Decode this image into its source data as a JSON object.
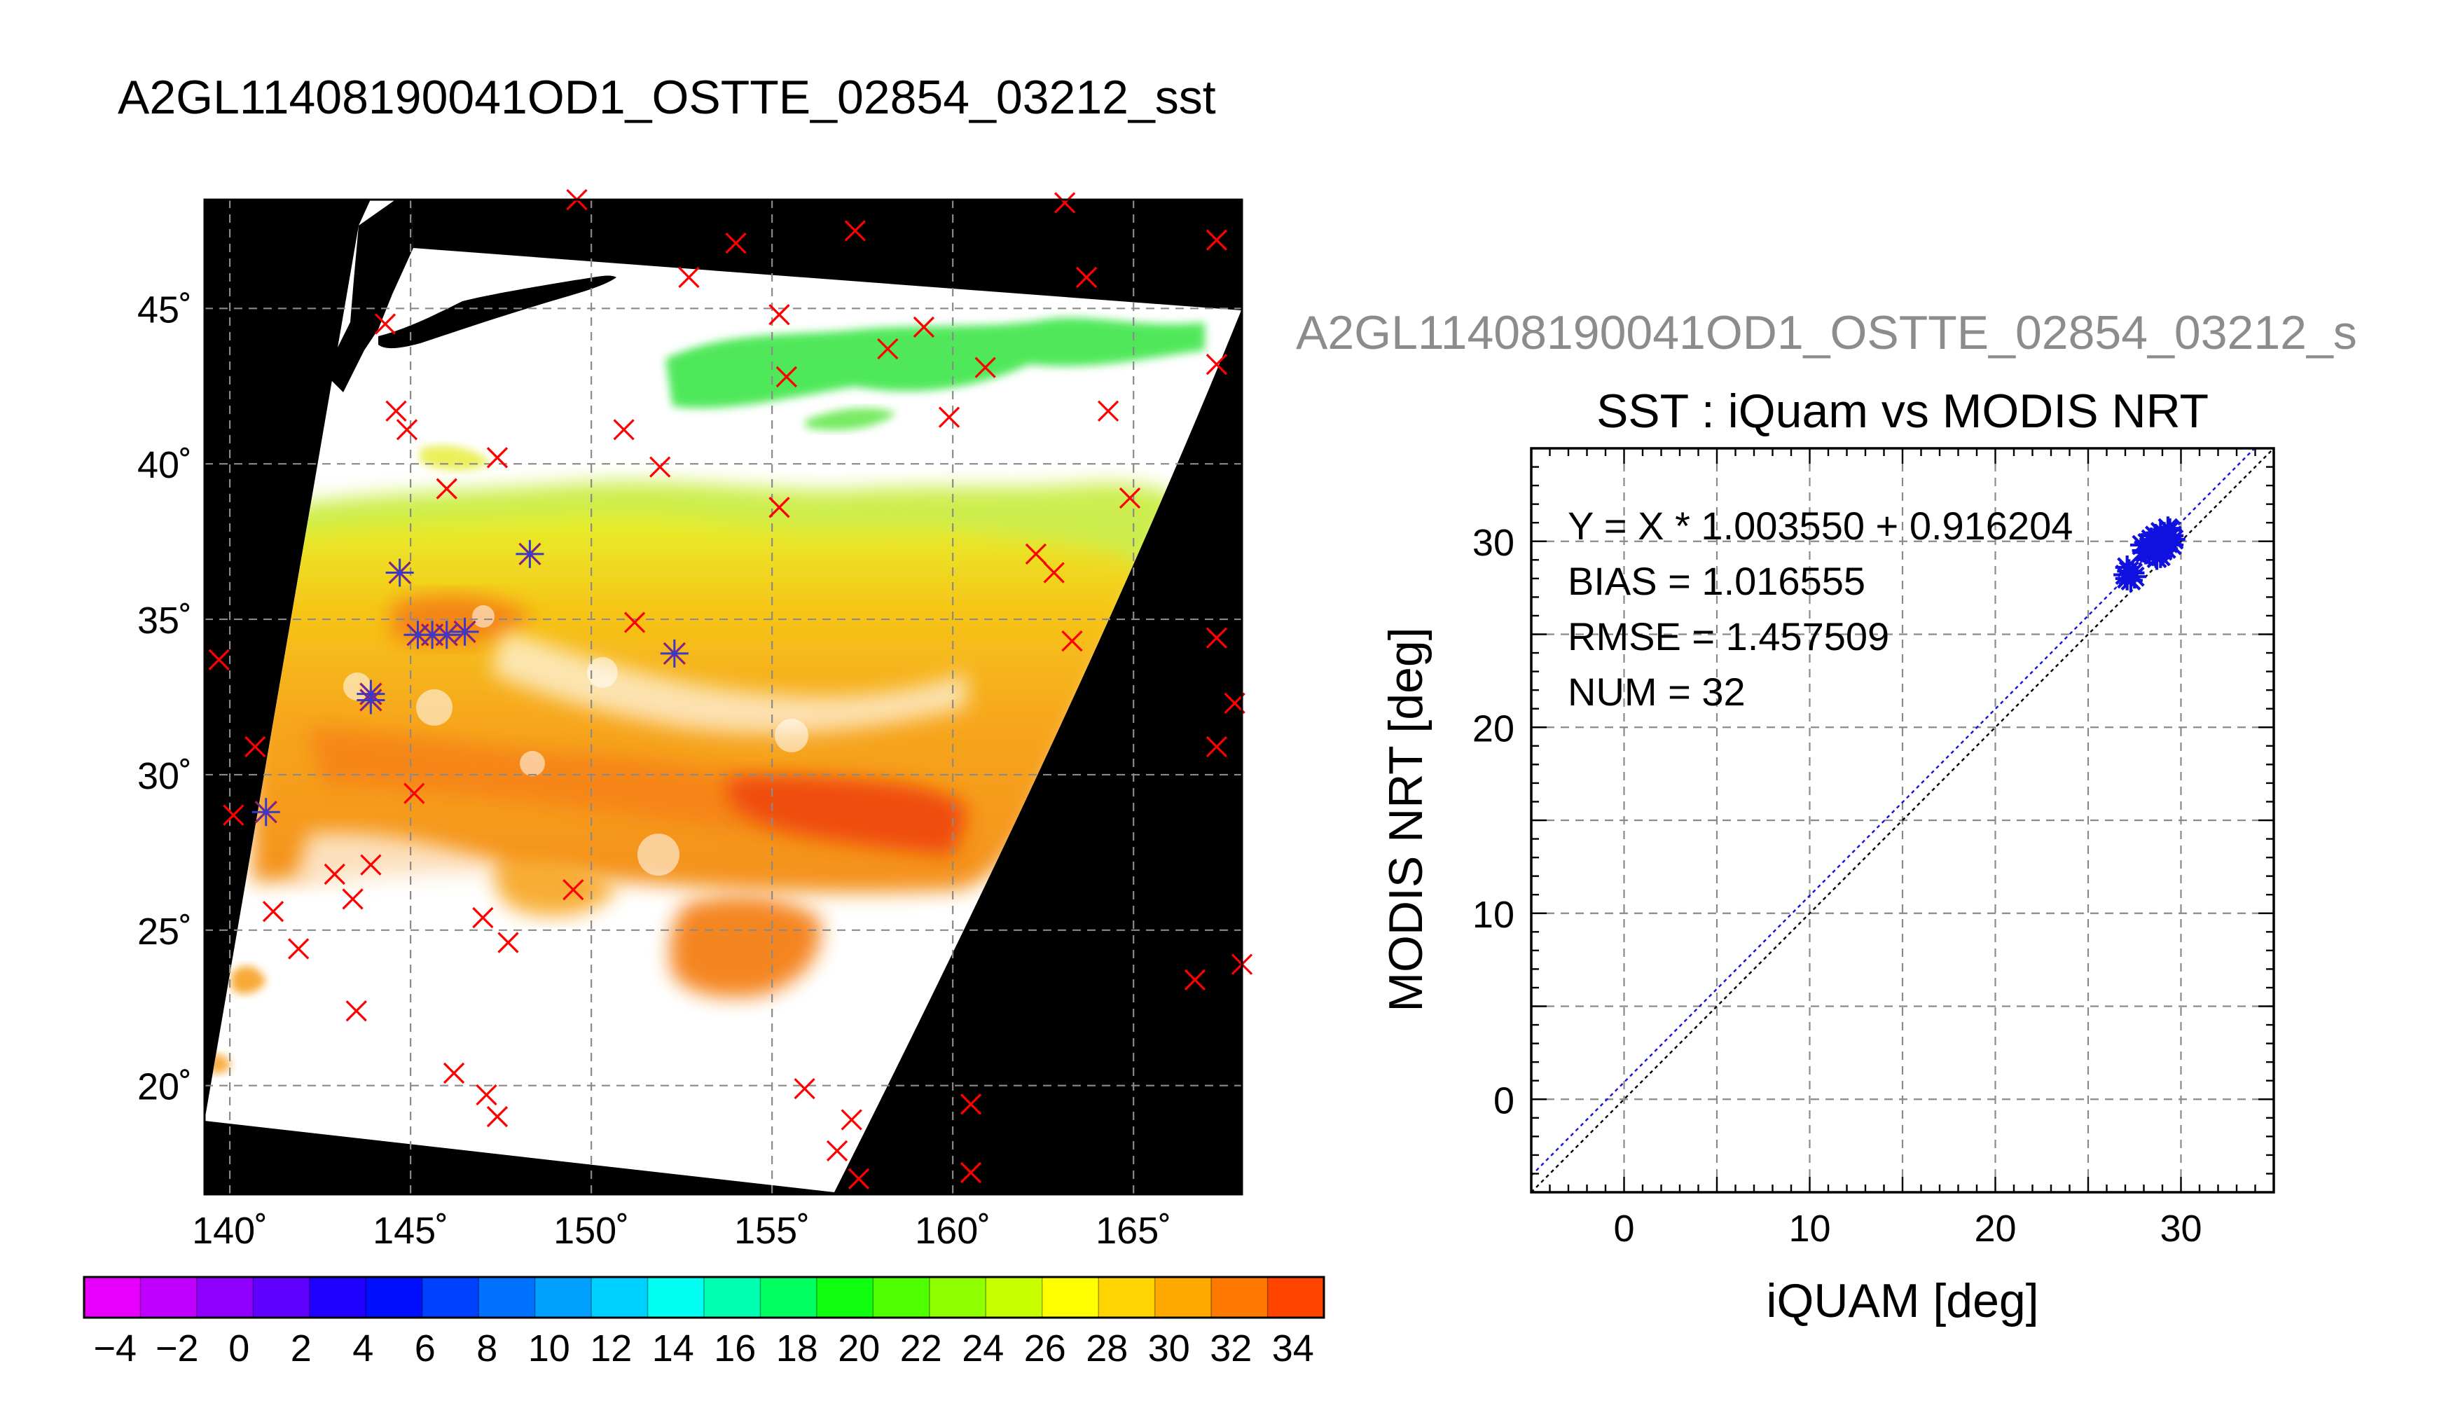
{
  "page": {
    "main_title": "A2GL11408190041OD1_OSTTE_02854_03212_sst",
    "scatter_subtitle": "A2GL11408190041OD1_OSTTE_02854_03212_s"
  },
  "colors": {
    "background_black": "#000000",
    "iquam_marker": "#ff0000",
    "matchup_marker": "#3a3ac8",
    "fit_line": "#1010e0",
    "identity_line": "#000000"
  },
  "chart_data": [
    {
      "type": "heatmap",
      "title": "A2GL11408190041OD1_OSTTE_02854_03212_sst",
      "xlim": [
        139.3,
        168.0
      ],
      "ylim": [
        16.5,
        48.5
      ],
      "x_ticks": [
        140,
        145,
        150,
        155,
        160,
        165
      ],
      "x_tick_labels": [
        "140˚",
        "145˚",
        "150˚",
        "155˚",
        "160˚",
        "165˚"
      ],
      "y_ticks": [
        20,
        25,
        30,
        35,
        40,
        45
      ],
      "y_tick_labels": [
        "20˚",
        "25˚",
        "30˚",
        "35˚",
        "40˚",
        "45˚"
      ],
      "grid": true,
      "colorbar": {
        "min": -5,
        "max": 35,
        "tick_labels": [
          "-4",
          "-2",
          "0",
          "2",
          "4",
          "6",
          "8",
          "10",
          "12",
          "14",
          "16",
          "18",
          "20",
          "22",
          "24",
          "26",
          "28",
          "30",
          "32",
          "34"
        ],
        "tick_values": [
          -4,
          -2,
          0,
          2,
          4,
          6,
          8,
          10,
          12,
          14,
          16,
          18,
          20,
          22,
          24,
          26,
          28,
          30,
          32,
          34
        ],
        "colors": [
          "#e800ff",
          "#c000ff",
          "#9000ff",
          "#6000ff",
          "#2000ff",
          "#0010ff",
          "#0040ff",
          "#0070ff",
          "#00a0ff",
          "#00d0ff",
          "#00fff0",
          "#00ffb0",
          "#00ff60",
          "#10ff10",
          "#50ff00",
          "#90ff00",
          "#c8ff00",
          "#ffff00",
          "#ffd400",
          "#ffa800",
          "#ff7800",
          "#ff4400"
        ]
      },
      "iquam_points": [
        [
          139.7,
          33.7
        ],
        [
          140.1,
          28.7
        ],
        [
          140.7,
          30.9
        ],
        [
          141.2,
          25.6
        ],
        [
          141.9,
          24.4
        ],
        [
          142.9,
          26.8
        ],
        [
          143.4,
          26.0
        ],
        [
          143.9,
          27.1
        ],
        [
          143.5,
          22.4
        ],
        [
          144.3,
          44.5
        ],
        [
          144.6,
          41.7
        ],
        [
          144.9,
          41.1
        ],
        [
          145.1,
          29.4
        ],
        [
          146.0,
          39.2
        ],
        [
          146.2,
          20.4
        ],
        [
          147.4,
          40.2
        ],
        [
          147.0,
          25.4
        ],
        [
          147.7,
          24.6
        ],
        [
          147.1,
          19.7
        ],
        [
          147.4,
          19.0
        ],
        [
          149.5,
          26.3
        ],
        [
          149.6,
          48.5
        ],
        [
          150.9,
          41.1
        ],
        [
          151.2,
          34.9
        ],
        [
          151.9,
          39.9
        ],
        [
          152.7,
          46.0
        ],
        [
          154.0,
          47.1
        ],
        [
          155.2,
          44.8
        ],
        [
          155.2,
          38.6
        ],
        [
          155.4,
          42.8
        ],
        [
          155.9,
          19.9
        ],
        [
          156.8,
          17.9
        ],
        [
          157.2,
          18.9
        ],
        [
          157.3,
          47.5
        ],
        [
          157.4,
          17.0
        ],
        [
          158.2,
          43.7
        ],
        [
          159.2,
          44.4
        ],
        [
          159.9,
          41.5
        ],
        [
          160.5,
          19.4
        ],
        [
          160.5,
          17.2
        ],
        [
          160.9,
          43.1
        ],
        [
          162.3,
          37.1
        ],
        [
          162.8,
          36.5
        ],
        [
          163.1,
          48.4
        ],
        [
          163.3,
          34.3
        ],
        [
          163.7,
          46.0
        ],
        [
          164.3,
          41.7
        ],
        [
          164.9,
          38.9
        ],
        [
          166.7,
          23.4
        ],
        [
          167.3,
          47.2
        ],
        [
          167.3,
          34.4
        ],
        [
          167.3,
          30.9
        ],
        [
          167.3,
          43.2
        ],
        [
          167.8,
          32.3
        ],
        [
          168.0,
          23.9
        ]
      ],
      "matchup_points": [
        [
          141.0,
          28.8
        ],
        [
          143.9,
          32.6
        ],
        [
          143.9,
          32.4
        ],
        [
          144.7,
          36.5
        ],
        [
          145.2,
          34.5
        ],
        [
          145.6,
          34.5
        ],
        [
          146.0,
          34.5
        ],
        [
          146.5,
          34.6
        ],
        [
          148.3,
          37.1
        ],
        [
          152.3,
          33.9
        ]
      ]
    },
    {
      "type": "scatter",
      "title": "SST : iQuam vs MODIS NRT",
      "xlabel": "iQUAM [deg]",
      "ylabel": "MODIS NRT [deg]",
      "xlim": [
        -5,
        35
      ],
      "ylim": [
        -5,
        35
      ],
      "x_ticks": [
        0,
        10,
        20,
        30
      ],
      "y_ticks": [
        0,
        10,
        20,
        30
      ],
      "grid": true,
      "annotations": [
        "Y = X * 1.003550 + 0.916204",
        "BIAS = 1.016555",
        "RMSE = 1.457509",
        "NUM = 32"
      ],
      "fit": {
        "slope": 1.00355,
        "intercept": 0.916204
      },
      "points": [
        [
          27.1,
          28.0
        ],
        [
          27.2,
          28.4
        ],
        [
          27.0,
          28.2
        ],
        [
          27.3,
          27.9
        ],
        [
          27.4,
          28.3
        ],
        [
          27.1,
          28.6
        ],
        [
          28.0,
          29.5
        ],
        [
          28.2,
          29.9
        ],
        [
          28.4,
          29.6
        ],
        [
          28.6,
          29.3
        ],
        [
          28.7,
          30.0
        ],
        [
          28.8,
          29.7
        ],
        [
          28.9,
          29.2
        ],
        [
          29.0,
          30.2
        ],
        [
          29.1,
          30.4
        ],
        [
          29.3,
          29.9
        ],
        [
          29.4,
          30.6
        ],
        [
          29.5,
          30.3
        ],
        [
          28.5,
          29.9
        ],
        [
          28.3,
          29.4
        ],
        [
          28.9,
          30.5
        ],
        [
          29.2,
          29.6
        ],
        [
          29.6,
          30.1
        ],
        [
          28.6,
          30.3
        ],
        [
          27.9,
          29.8
        ],
        [
          28.1,
          29.4
        ],
        [
          29.0,
          29.5
        ],
        [
          29.3,
          30.7
        ],
        [
          28.7,
          29.1
        ],
        [
          27.5,
          28.1
        ],
        [
          28.4,
          30.1
        ],
        [
          29.5,
          29.8
        ]
      ]
    }
  ]
}
